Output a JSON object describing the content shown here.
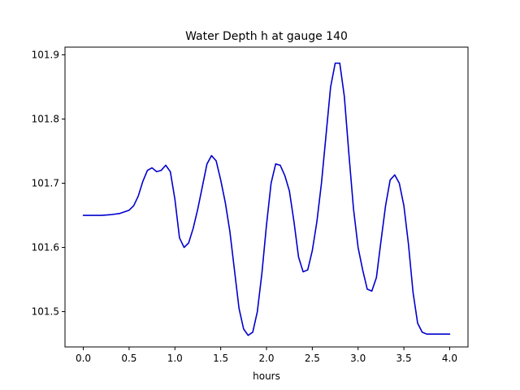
{
  "chart_data": {
    "type": "line",
    "title": "Water Depth h at gauge 140",
    "xlabel": "hours",
    "ylabel": "",
    "xlim": [
      -0.2,
      4.2
    ],
    "ylim": [
      101.445,
      101.912
    ],
    "xticks": [
      0.0,
      0.5,
      1.0,
      1.5,
      2.0,
      2.5,
      3.0,
      3.5,
      4.0
    ],
    "xtick_labels": [
      "0.0",
      "0.5",
      "1.0",
      "1.5",
      "2.0",
      "2.5",
      "3.0",
      "3.5",
      "4.0"
    ],
    "yticks": [
      101.5,
      101.6,
      101.7,
      101.8,
      101.9
    ],
    "ytick_labels": [
      "101.5",
      "101.6",
      "101.7",
      "101.8",
      "101.9"
    ],
    "grid": false,
    "legend": "none",
    "series": [
      {
        "color": "#0000cc",
        "x": [
          0.0,
          0.1,
          0.2,
          0.3,
          0.4,
          0.5,
          0.55,
          0.6,
          0.65,
          0.7,
          0.75,
          0.8,
          0.85,
          0.9,
          0.95,
          1.0,
          1.05,
          1.1,
          1.15,
          1.2,
          1.25,
          1.3,
          1.35,
          1.4,
          1.45,
          1.5,
          1.55,
          1.6,
          1.65,
          1.7,
          1.75,
          1.8,
          1.85,
          1.9,
          1.95,
          2.0,
          2.05,
          2.1,
          2.15,
          2.2,
          2.25,
          2.3,
          2.35,
          2.4,
          2.45,
          2.5,
          2.55,
          2.6,
          2.65,
          2.7,
          2.75,
          2.8,
          2.85,
          2.9,
          2.95,
          3.0,
          3.05,
          3.1,
          3.15,
          3.2,
          3.25,
          3.3,
          3.35,
          3.4,
          3.45,
          3.5,
          3.55,
          3.6,
          3.65,
          3.7,
          3.75,
          3.8,
          3.85,
          3.9,
          3.95,
          4.0
        ],
        "y": [
          101.65,
          101.65,
          101.65,
          101.651,
          101.653,
          101.658,
          101.665,
          101.68,
          101.703,
          101.72,
          101.724,
          101.718,
          101.72,
          101.728,
          101.718,
          101.675,
          101.615,
          101.6,
          101.607,
          101.63,
          101.66,
          101.695,
          101.73,
          101.743,
          101.735,
          101.705,
          101.67,
          101.625,
          101.565,
          101.505,
          101.473,
          101.463,
          101.468,
          101.5,
          101.56,
          101.635,
          101.7,
          101.73,
          101.728,
          101.712,
          101.688,
          101.64,
          101.585,
          101.562,
          101.565,
          101.595,
          101.64,
          101.7,
          101.775,
          101.85,
          101.887,
          101.887,
          101.835,
          101.745,
          101.66,
          101.6,
          101.565,
          101.535,
          101.532,
          101.553,
          101.61,
          101.665,
          101.705,
          101.713,
          101.7,
          101.665,
          101.605,
          101.53,
          101.482,
          101.468,
          101.465,
          101.465,
          101.465,
          101.465,
          101.465,
          101.465
        ]
      }
    ]
  }
}
